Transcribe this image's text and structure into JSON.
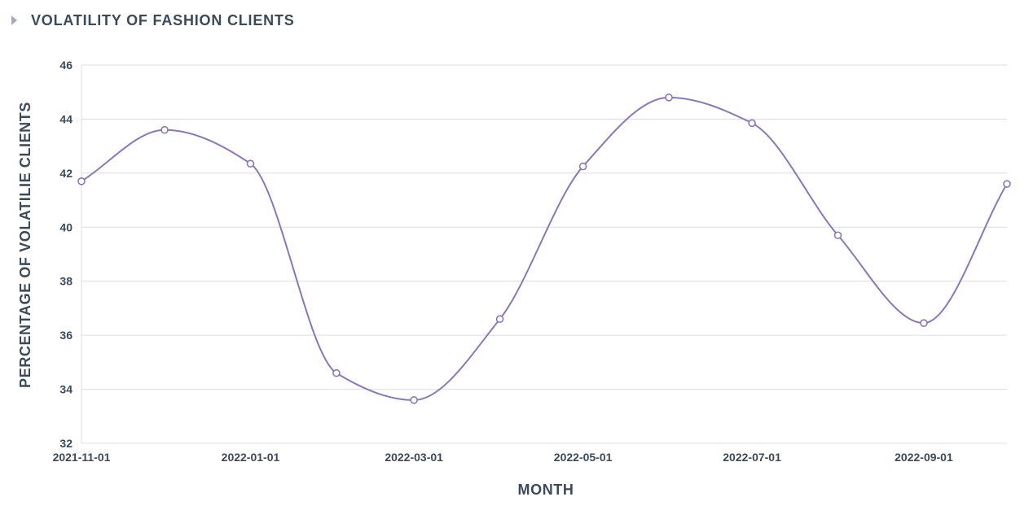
{
  "header": {
    "title": "VOLATILITY OF FASHION CLIENTS"
  },
  "colors": {
    "line": "#8b77b8",
    "grid": "#d9dde2",
    "text": "#3b4a5a",
    "caret": "#a3adb8"
  },
  "chart_data": {
    "type": "line",
    "title": "VOLATILITY OF FASHION CLIENTS",
    "xlabel": "MONTH",
    "ylabel": "PERCENTAGE  OF  VOLATILIE  CLIENTS",
    "x": [
      "2021-11-01",
      "2021-12-01",
      "2022-01-01",
      "2022-02-01",
      "2022-03-01",
      "2022-04-01",
      "2022-05-01",
      "2022-06-01",
      "2022-07-01",
      "2022-08-01",
      "2022-09-01",
      "2022-10-01"
    ],
    "x_ticks": [
      "2021-11-01",
      "2022-01-01",
      "2022-03-01",
      "2022-05-01",
      "2022-07-01",
      "2022-09-01"
    ],
    "y_ticks": [
      32,
      34,
      36,
      38,
      40,
      42,
      44,
      46
    ],
    "ylim": [
      32,
      46
    ],
    "grid": true,
    "series": [
      {
        "values": [
          41.7,
          43.6,
          42.35,
          34.6,
          33.6,
          36.6,
          42.25,
          44.8,
          43.85,
          39.7,
          36.45,
          41.6
        ]
      }
    ]
  }
}
